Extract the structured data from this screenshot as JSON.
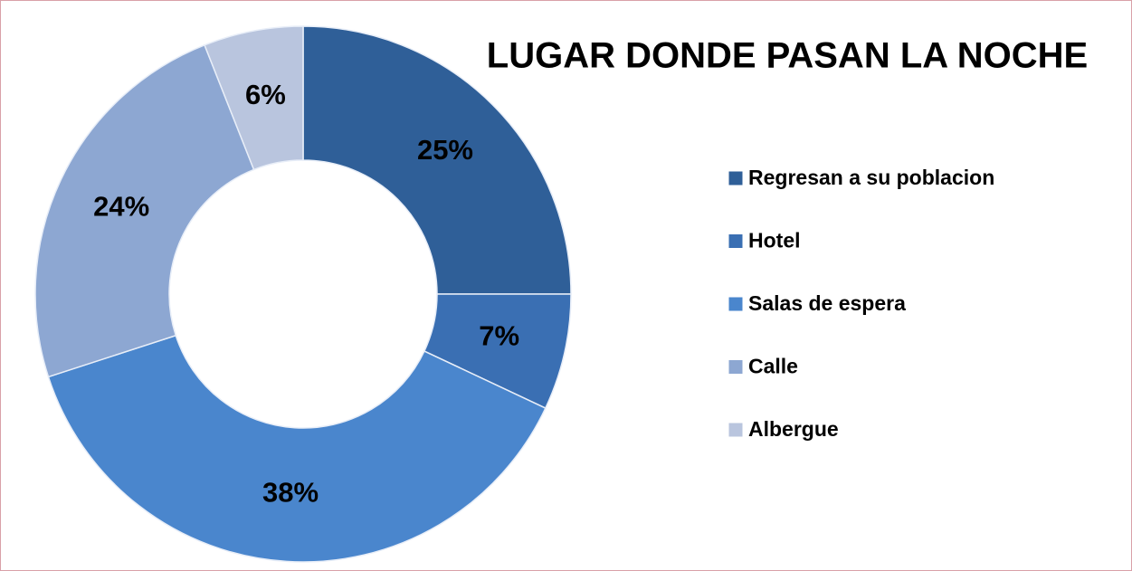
{
  "chart_data": {
    "type": "donut",
    "title": "LUGAR DONDE PASAN LA NOCHE",
    "categories": [
      "Regresan a su poblacion",
      "Hotel",
      "Salas de espera",
      "Calle",
      "Albergue"
    ],
    "values": [
      25,
      7,
      38,
      24,
      6
    ],
    "value_labels": [
      "25%",
      "7%",
      "38%",
      "24%",
      "6%"
    ],
    "colors": [
      "#2f5f98",
      "#3a6fb3",
      "#4a86cd",
      "#8da7d2",
      "#b9c5de"
    ],
    "legend": "right"
  }
}
